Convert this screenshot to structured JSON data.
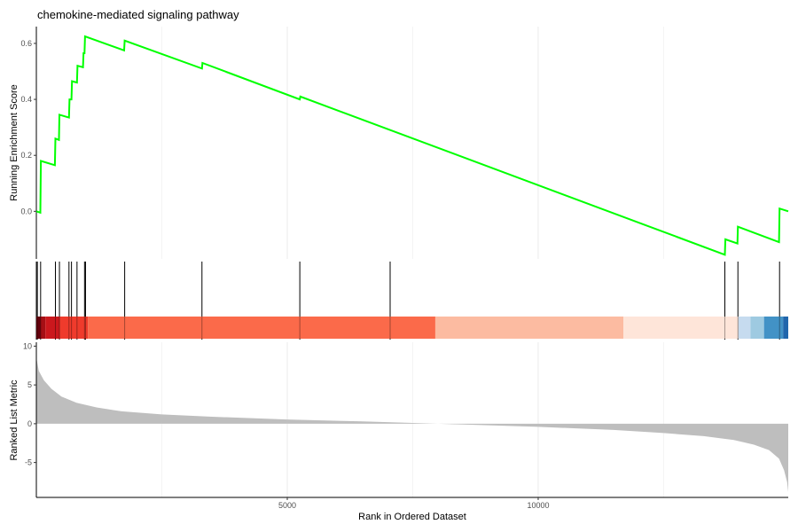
{
  "chart_data": {
    "type": "line",
    "title": "chemokine-mediated signaling pathway",
    "xlabel": "Rank in Ordered Dataset",
    "xlim": [
      0,
      14983
    ],
    "x_ticks": [
      5000,
      10000
    ],
    "x_tick_labels": [
      "5000",
      "10000"
    ],
    "grid": "vertical major and minor",
    "panels": {
      "running_score": {
        "ylabel": "Running Enrichment Score",
        "ylim": [
          -0.17,
          0.66
        ],
        "y_ticks": [
          0.0,
          0.2,
          0.4,
          0.6
        ],
        "y_tick_labels": [
          "0.0",
          "0.2",
          "0.4",
          "0.6"
        ],
        "line_color": "#00ff00",
        "series": [
          {
            "points": [
              [
                0,
                0.0
              ],
              [
                80,
                -0.005
              ],
              [
                90,
                0.18
              ],
              [
                370,
                0.165
              ],
              [
                380,
                0.26
              ],
              [
                450,
                0.255
              ],
              [
                460,
                0.345
              ],
              [
                650,
                0.335
              ],
              [
                660,
                0.4
              ],
              [
                700,
                0.4
              ],
              [
                710,
                0.465
              ],
              [
                810,
                0.46
              ],
              [
                820,
                0.52
              ],
              [
                930,
                0.515
              ],
              [
                940,
                0.565
              ],
              [
                960,
                0.565
              ],
              [
                970,
                0.625
              ],
              [
                1750,
                0.575
              ],
              [
                1760,
                0.61
              ],
              [
                3300,
                0.51
              ],
              [
                3310,
                0.53
              ],
              [
                5250,
                0.4
              ],
              [
                5260,
                0.41
              ],
              [
                13720,
                -0.155
              ],
              [
                13730,
                -0.1
              ],
              [
                13970,
                -0.115
              ],
              [
                13980,
                -0.055
              ],
              [
                14800,
                -0.11
              ],
              [
                14810,
                0.01
              ],
              [
                14983,
                0.0
              ]
            ]
          }
        ]
      },
      "hit_positions": [
        20,
        85,
        380,
        460,
        650,
        700,
        810,
        960,
        980,
        1760,
        3300,
        5250,
        7050,
        13720,
        13980,
        14810
      ],
      "rank_bar_segments": [
        {
          "from": 0,
          "to": 80,
          "color": "#67000d"
        },
        {
          "from": 80,
          "to": 180,
          "color": "#a50f15"
        },
        {
          "from": 180,
          "to": 460,
          "color": "#cb181d"
        },
        {
          "from": 460,
          "to": 1030,
          "color": "#ef3b2c"
        },
        {
          "from": 1030,
          "to": 7950,
          "color": "#fb6a4a"
        },
        {
          "from": 7950,
          "to": 11700,
          "color": "#fcbba1"
        },
        {
          "from": 11700,
          "to": 13990,
          "color": "#fee5d9"
        },
        {
          "from": 13990,
          "to": 14230,
          "color": "#c6dbef"
        },
        {
          "from": 14230,
          "to": 14500,
          "color": "#9ecae1"
        },
        {
          "from": 14500,
          "to": 14880,
          "color": "#4292c6"
        },
        {
          "from": 14880,
          "to": 14983,
          "color": "#2166ac"
        }
      ],
      "ranked_metric": {
        "ylabel": "Ranked List Metric",
        "ylim": [
          -9.5,
          10.5
        ],
        "y_ticks": [
          -5,
          0,
          5,
          10
        ],
        "y_tick_labels": [
          "-5",
          "0",
          "5",
          "10"
        ],
        "fill_color": "#bebebe",
        "curve": [
          [
            0,
            8.5
          ],
          [
            50,
            6.8
          ],
          [
            150,
            5.6
          ],
          [
            300,
            4.5
          ],
          [
            500,
            3.5
          ],
          [
            800,
            2.7
          ],
          [
            1200,
            2.1
          ],
          [
            1700,
            1.6
          ],
          [
            2500,
            1.2
          ],
          [
            3500,
            0.9
          ],
          [
            5000,
            0.55
          ],
          [
            6500,
            0.3
          ],
          [
            7500,
            0.1
          ],
          [
            8000,
            0.0
          ],
          [
            8500,
            -0.1
          ],
          [
            10000,
            -0.4
          ],
          [
            11500,
            -0.8
          ],
          [
            12500,
            -1.2
          ],
          [
            13300,
            -1.6
          ],
          [
            13900,
            -2.1
          ],
          [
            14300,
            -2.7
          ],
          [
            14600,
            -3.4
          ],
          [
            14800,
            -4.5
          ],
          [
            14900,
            -6.0
          ],
          [
            14960,
            -7.5
          ],
          [
            14983,
            -8.8
          ]
        ]
      }
    }
  }
}
